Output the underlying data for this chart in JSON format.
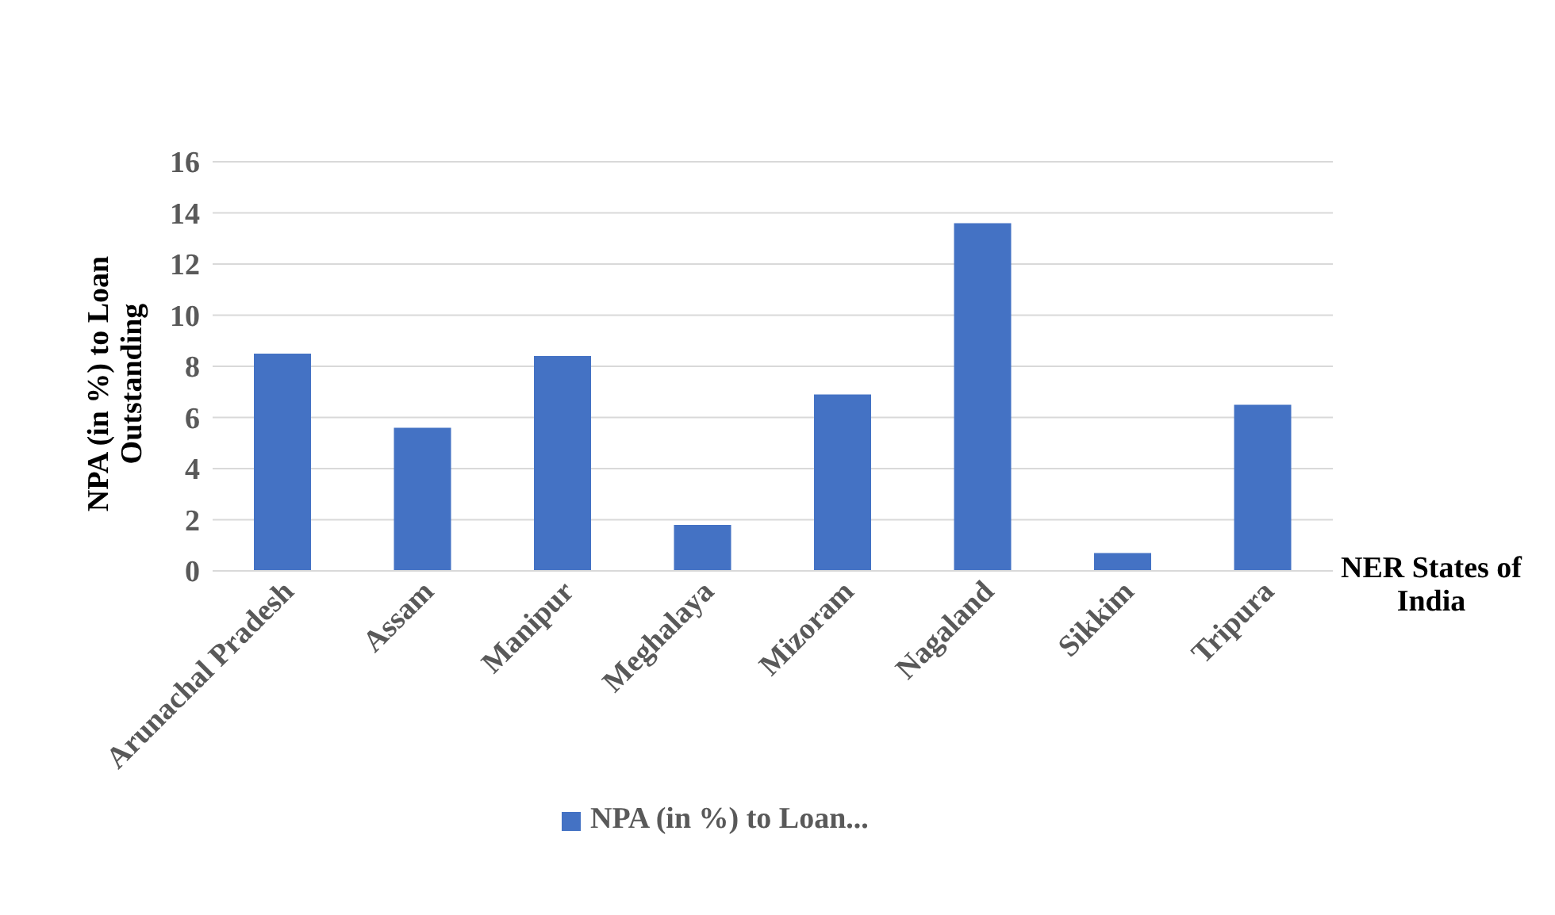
{
  "chart_data": {
    "type": "bar",
    "ylabel": "NPA (in %) to Loan Outstanding",
    "xlabel": "NER States of India",
    "categories": [
      "Arunachal Pradesh",
      "Assam",
      "Manipur",
      "Meghalaya",
      "Mizoram",
      "Nagaland",
      "Sikkim",
      "Tripura"
    ],
    "series": [
      {
        "name": "NPA (in %) to Loan...",
        "color": "#4472c4",
        "values": [
          8.5,
          5.6,
          8.4,
          1.8,
          6.9,
          13.6,
          0.7,
          6.5
        ]
      }
    ],
    "ylim": [
      0,
      16
    ],
    "yticks": [
      0,
      2,
      4,
      6,
      8,
      10,
      12,
      14,
      16
    ],
    "grid": "y",
    "legend": "bottom"
  }
}
